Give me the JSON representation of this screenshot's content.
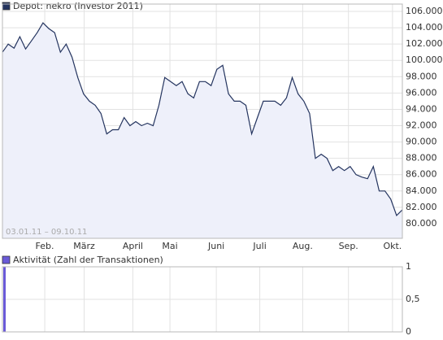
{
  "chart_data": [
    {
      "type": "line",
      "annotation": "03.01.11 – 09.10.11",
      "series": [
        {
          "name": "Depot: nekro (Investor 2011)",
          "color": "#24345f",
          "fill": "#eef0fa",
          "values": [
            101000,
            102000,
            101500,
            102900,
            101400,
            102400,
            103400,
            104600,
            103900,
            103400,
            101000,
            102000,
            100400,
            97900,
            95900,
            95000,
            94500,
            93500,
            91000,
            91500,
            91500,
            93000,
            92000,
            92500,
            92000,
            92300,
            92000,
            94500,
            97900,
            97400,
            96900,
            97400,
            95900,
            95400,
            97400,
            97400,
            96900,
            98900,
            99400,
            95900,
            95000,
            95000,
            94500,
            91000,
            93000,
            95000,
            95000,
            95000,
            94500,
            95400,
            97900,
            95900,
            95000,
            93500,
            88000,
            88500,
            88000,
            86500,
            87000,
            86500,
            87000,
            86000,
            85700,
            85500,
            87000,
            84000,
            84000,
            83000,
            81000,
            81700
          ]
        }
      ],
      "xlim": [
        0,
        69
      ],
      "xticks": [
        {
          "value": 7.3,
          "label": "Feb."
        },
        {
          "value": 14.1,
          "label": "März"
        },
        {
          "value": 22.5,
          "label": "April"
        },
        {
          "value": 28.9,
          "label": "Mai"
        },
        {
          "value": 36.9,
          "label": "Juni"
        },
        {
          "value": 44.4,
          "label": "Juli"
        },
        {
          "value": 51.8,
          "label": "Aug."
        },
        {
          "value": 59.7,
          "label": "Sep."
        },
        {
          "value": 67.3,
          "label": "Okt."
        }
      ],
      "ylim": [
        78200,
        106900
      ],
      "yticks": [
        {
          "value": 80000,
          "label": "80.000"
        },
        {
          "value": 82000,
          "label": "82.000"
        },
        {
          "value": 84000,
          "label": "84.000"
        },
        {
          "value": 86000,
          "label": "86.000"
        },
        {
          "value": 88000,
          "label": "88.000"
        },
        {
          "value": 90000,
          "label": "90.000"
        },
        {
          "value": 92000,
          "label": "92.000"
        },
        {
          "value": 94000,
          "label": "94.000"
        },
        {
          "value": 96000,
          "label": "96.000"
        },
        {
          "value": 98000,
          "label": "98.000"
        },
        {
          "value": 100000,
          "label": "100.000"
        },
        {
          "value": 102000,
          "label": "102.000"
        },
        {
          "value": 104000,
          "label": "104.000"
        },
        {
          "value": 106000,
          "label": "106.000"
        }
      ],
      "grid": true
    },
    {
      "type": "bar",
      "series": [
        {
          "name": "Aktivität (Zahl der Transaktionen)",
          "color": "#6a5ad8",
          "values": [
            1
          ]
        }
      ],
      "x": [
        0
      ],
      "xlim": [
        0,
        69
      ],
      "ylim": [
        0,
        1
      ],
      "yticks": [
        0,
        {
          "value": 0.5,
          "label": "0,5"
        },
        1
      ],
      "grid": true
    }
  ]
}
